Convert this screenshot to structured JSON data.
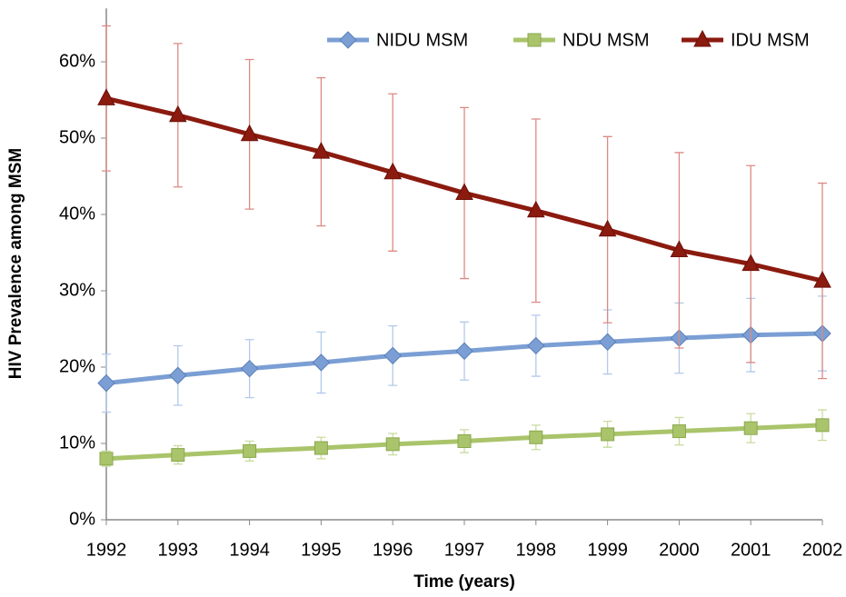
{
  "chart_data": {
    "type": "line",
    "x_label": "Time (years)",
    "y_label": "HIV Prevalence among MSM",
    "x": [
      1992,
      1993,
      1994,
      1995,
      1996,
      1997,
      1998,
      1999,
      2000,
      2001,
      2002
    ],
    "xlim": [
      1992,
      2002
    ],
    "xticks": [
      1992,
      1993,
      1994,
      1995,
      1996,
      1997,
      1998,
      1999,
      2000,
      2001,
      2002
    ],
    "ylim": [
      0,
      67
    ],
    "yticks": [
      {
        "value": 0,
        "label": "0%"
      },
      {
        "value": 10,
        "label": "10%"
      },
      {
        "value": 20,
        "label": "20%"
      },
      {
        "value": 30,
        "label": "30%"
      },
      {
        "value": 40,
        "label": "40%"
      },
      {
        "value": 50,
        "label": "50%"
      },
      {
        "value": 60,
        "label": "60%"
      }
    ],
    "grid": false,
    "legend": "top-right",
    "series": [
      {
        "name": "NIDU MSM",
        "color": "#7b9fd4",
        "marker": "diamond",
        "error_color": "#b3c9ea",
        "values": [
          17.9,
          18.9,
          19.8,
          20.6,
          21.5,
          22.1,
          22.8,
          23.3,
          23.8,
          24.2,
          24.4
        ],
        "errors": [
          3.8,
          3.9,
          3.8,
          4.0,
          3.9,
          3.8,
          4.0,
          4.2,
          4.6,
          4.8,
          4.9
        ]
      },
      {
        "name": "NDU MSM",
        "color": "#a9c46a",
        "marker": "square",
        "error_color": "#c9dca0",
        "values": [
          8.0,
          8.5,
          9.0,
          9.4,
          9.9,
          10.3,
          10.8,
          11.2,
          11.6,
          12.0,
          12.4
        ],
        "errors": [
          1.0,
          1.2,
          1.3,
          1.4,
          1.4,
          1.5,
          1.6,
          1.7,
          1.8,
          1.9,
          2.0
        ]
      },
      {
        "name": "IDU MSM",
        "color": "#8b1a0f",
        "marker": "triangle",
        "error_color": "#dc8a84",
        "values": [
          55.2,
          53.0,
          50.5,
          48.2,
          45.5,
          42.8,
          40.5,
          38.0,
          35.3,
          33.5,
          31.3
        ],
        "errors": [
          9.5,
          9.4,
          9.8,
          9.7,
          10.3,
          11.2,
          12.0,
          12.2,
          12.8,
          12.9,
          12.8
        ]
      }
    ]
  }
}
